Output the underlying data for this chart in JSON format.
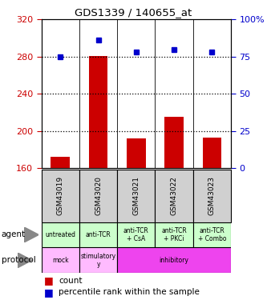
{
  "title": "GDS1339 / 140655_at",
  "samples": [
    "GSM43019",
    "GSM43020",
    "GSM43021",
    "GSM43022",
    "GSM43023"
  ],
  "counts": [
    172,
    281,
    192,
    215,
    193
  ],
  "percentile_ranks": [
    75,
    86,
    78,
    80,
    78
  ],
  "ylim_left": [
    160,
    320
  ],
  "ylim_right": [
    0,
    100
  ],
  "yticks_left": [
    160,
    200,
    240,
    280,
    320
  ],
  "yticks_right": [
    0,
    25,
    50,
    75,
    100
  ],
  "bar_color": "#cc0000",
  "dot_color": "#0000cc",
  "agent_labels": [
    "untreated",
    "anti-TCR",
    "anti-TCR\n+ CsA",
    "anti-TCR\n+ PKCi",
    "anti-TCR\n+ Combo"
  ],
  "protocol_data": [
    [
      0,
      1,
      "mock",
      "#ffbbff"
    ],
    [
      1,
      2,
      "stimulatory\ny",
      "#ffbbff"
    ],
    [
      2,
      5,
      "inhibitory",
      "#ee44ee"
    ]
  ],
  "sample_bg": "#d0d0d0",
  "agent_bg": "#ccffcc",
  "left_tick_color": "#cc0000",
  "right_tick_color": "#0000cc",
  "dotted_line_color": "#000000",
  "vline_color": "#000000"
}
